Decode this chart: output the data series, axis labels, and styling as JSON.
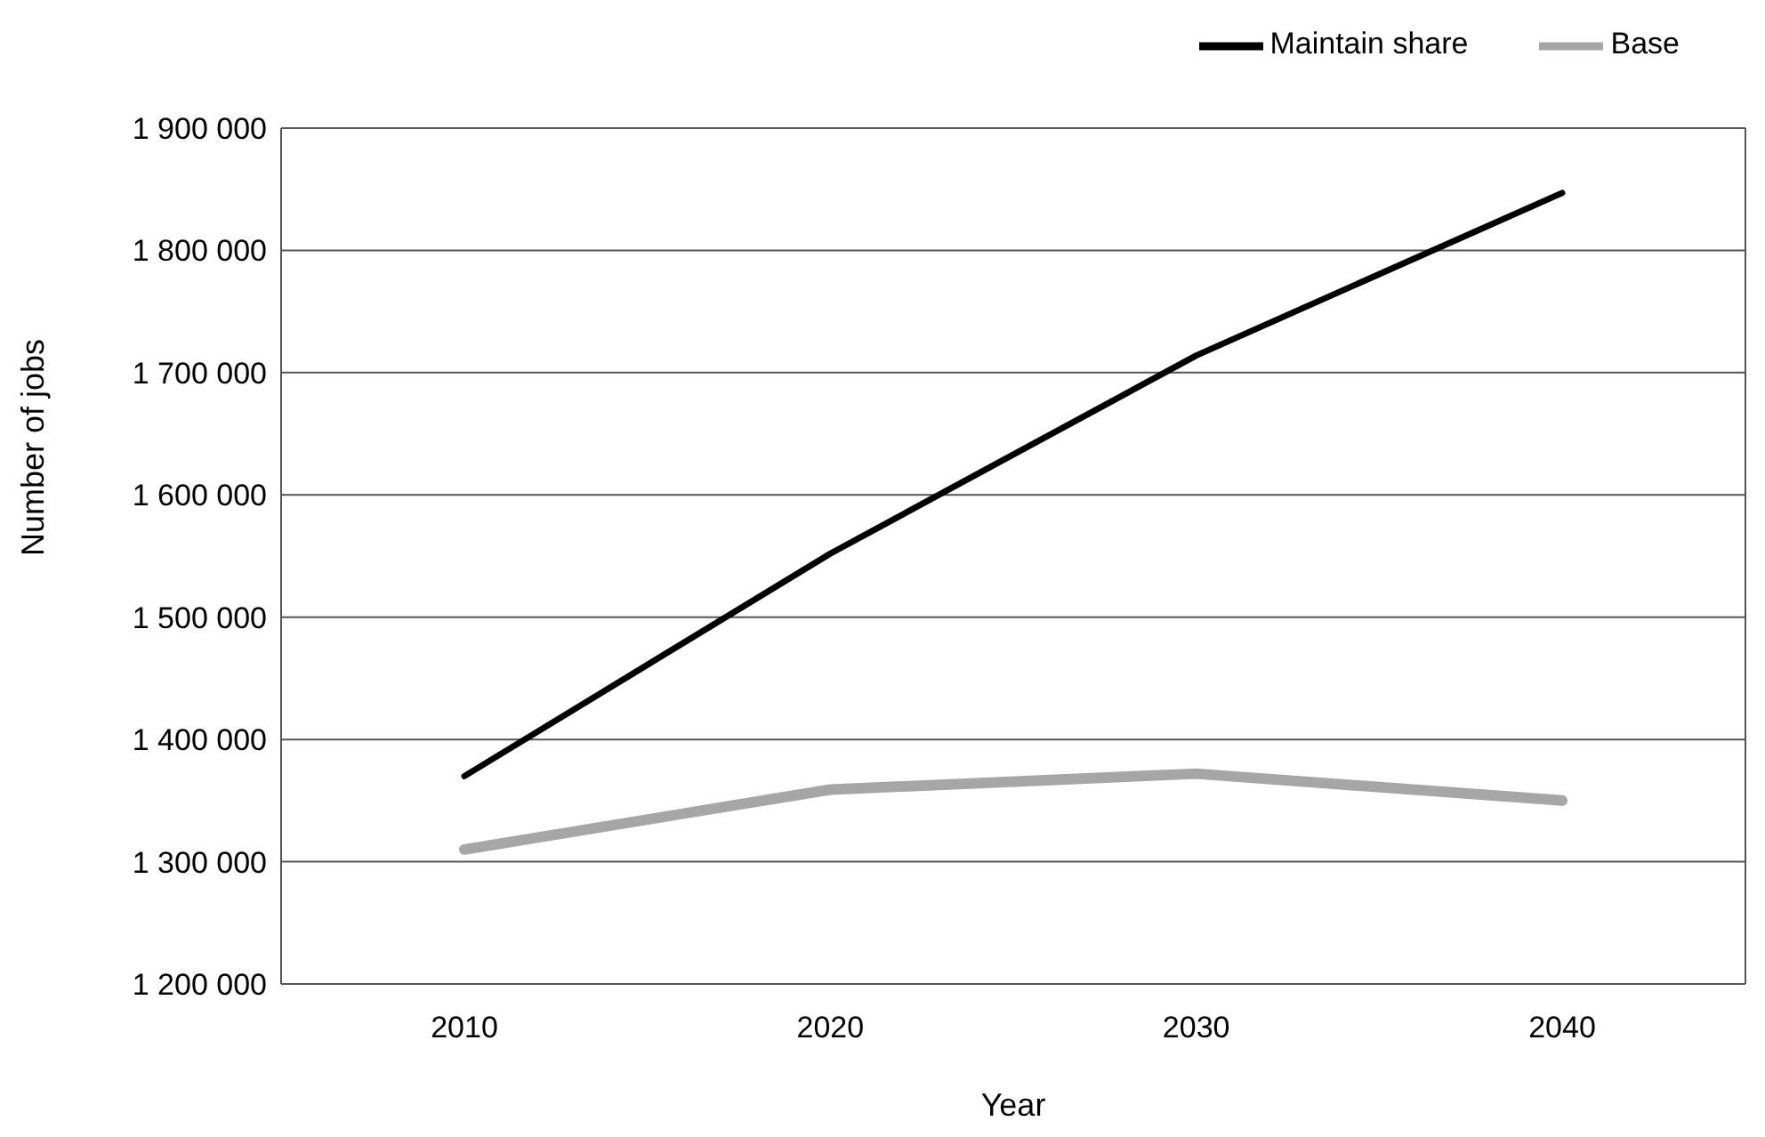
{
  "chart_data": {
    "type": "line",
    "xlabel": "Year",
    "ylabel": "Number of jobs",
    "categories": [
      "2010",
      "2020",
      "2030",
      "2040"
    ],
    "series": [
      {
        "name": "Maintain share",
        "color": "#000000",
        "values": [
          1370000,
          1552000,
          1714000,
          1847000
        ]
      },
      {
        "name": "Base",
        "color": "#a6a6a6",
        "values": [
          1310000,
          1359000,
          1372000,
          1350000
        ]
      }
    ],
    "ylim": [
      1200000,
      1900000
    ],
    "yticks": [
      {
        "value": 1200000,
        "label": "1 200 000"
      },
      {
        "value": 1300000,
        "label": "1 300 000"
      },
      {
        "value": 1400000,
        "label": "1 400 000"
      },
      {
        "value": 1500000,
        "label": "1 500 000"
      },
      {
        "value": 1600000,
        "label": "1 600 000"
      },
      {
        "value": 1700000,
        "label": "1 700 000"
      },
      {
        "value": 1800000,
        "label": "1 800 000"
      },
      {
        "value": 1900000,
        "label": "1 900 000"
      }
    ],
    "grid": "y",
    "legend": "top right",
    "marker": "none",
    "line_style": "solid"
  }
}
